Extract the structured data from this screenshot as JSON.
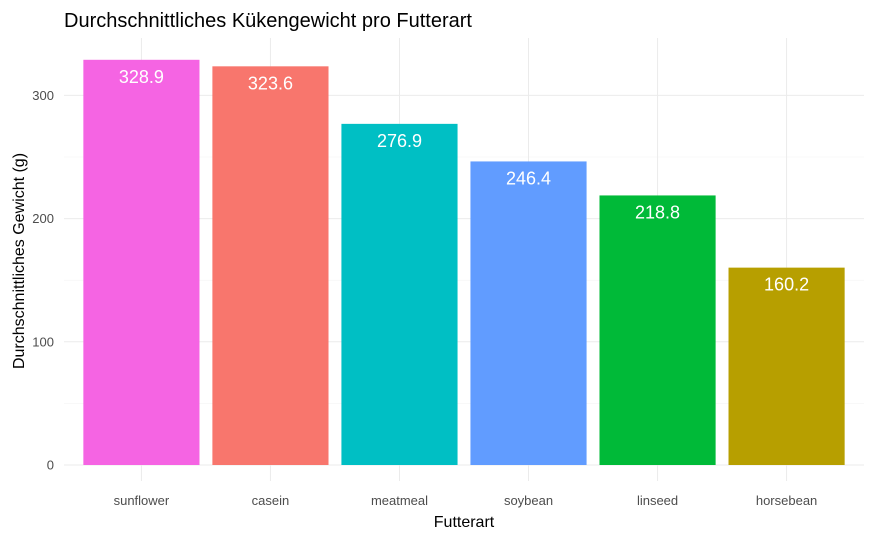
{
  "chart_data": {
    "type": "bar",
    "title": "Durchschnittliches Kükengewicht pro Futterart",
    "xlabel": "Futterart",
    "ylabel": "Durchschnittliches Gewicht (g)",
    "categories": [
      "sunflower",
      "casein",
      "meatmeal",
      "soybean",
      "linseed",
      "horsebean"
    ],
    "values": [
      328.9,
      323.6,
      276.9,
      246.4,
      218.8,
      160.2
    ],
    "data_labels": [
      "328.9",
      "323.6",
      "276.9",
      "246.4",
      "218.8",
      "160.2"
    ],
    "colors": [
      "#F564E3",
      "#F8766D",
      "#00BFC4",
      "#619CFF",
      "#00BA38",
      "#B79F00"
    ],
    "yticks": [
      0,
      100,
      200,
      300
    ],
    "ytick_labels": [
      "0",
      "100",
      "200",
      "300"
    ],
    "ylim": [
      0,
      345
    ],
    "grid": true,
    "legend": "none"
  }
}
